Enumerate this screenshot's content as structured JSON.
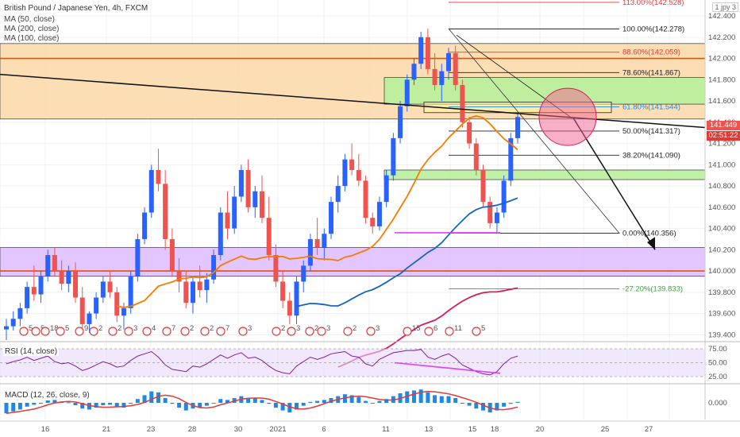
{
  "header": {
    "title": "British Pound / Japanese Yen, 4h, FXCM",
    "indicators": [
      "MA (50, close)",
      "MA (200, close)",
      "MA (100, close)"
    ],
    "corner_label": "1 jpy 3"
  },
  "current_price": {
    "value": "141.449",
    "countdown": "02:51:22",
    "price_color": "#ef5350",
    "countdown_color": "#e53935"
  },
  "colors": {
    "up": "#2962ff",
    "down": "#ef5350",
    "ma50": "#f57c00",
    "ma100": "#1565c0",
    "ma200": "#d81b60",
    "supply_zone": "#fbd8a8",
    "demand_zone": "#b9ef9c",
    "purple_zone": "#dcb8ff"
  },
  "chart_data": [
    {
      "type": "candlestick",
      "title": "British Pound / Japanese Yen, 4h, FXCM",
      "y_axis_ticks": [
        142.4,
        142.2,
        142.0,
        141.8,
        141.6,
        141.4,
        141.2,
        141.0,
        140.8,
        140.6,
        140.4,
        140.2,
        140.0,
        139.8,
        139.6,
        139.4
      ],
      "y_tick_labels": [
        "142.400",
        "142.200",
        "142.000",
        "141.800",
        "141.600",
        "141.400",
        "141.200",
        "141.000",
        "140.800",
        "140.600",
        "140.400",
        "140.200",
        "140.000",
        "139.800",
        "139.600",
        "139.400"
      ],
      "ylim": [
        139.35,
        142.55
      ],
      "x_tick_labels": [
        "16",
        "21",
        "23",
        "28",
        "30",
        "2021",
        "6",
        "11",
        "13",
        "15",
        "18",
        "20",
        "25",
        "27"
      ],
      "fib_levels": [
        {
          "label": "113.00%(142.528)",
          "price": 142.528,
          "color": "#e53935"
        },
        {
          "label": "100.00%(142.278)",
          "price": 142.278,
          "color": "#222222"
        },
        {
          "label": "88.60%(142.059)",
          "price": 142.059,
          "color": "#e53935"
        },
        {
          "label": "78.60%(141.867)",
          "price": 141.867,
          "color": "#222222"
        },
        {
          "label": "61.80%(141.544)",
          "price": 141.544,
          "color": "#1e88e5"
        },
        {
          "label": "50.00%(141.317)",
          "price": 141.317,
          "color": "#222222"
        },
        {
          "label": "38.20%(141.090)",
          "price": 141.09,
          "color": "#222222"
        },
        {
          "label": "0.00%(140.356)",
          "price": 140.356,
          "color": "#222222"
        },
        {
          "label": "-27.20%(139.833)",
          "price": 139.833,
          "color": "#43a047"
        }
      ],
      "zones": [
        {
          "name": "supply",
          "from": 141.43,
          "to": 142.14
        },
        {
          "name": "demand-upper",
          "from": 141.57,
          "to": 141.82
        },
        {
          "name": "demand-lower",
          "from": 140.86,
          "to": 140.95
        },
        {
          "name": "purple",
          "from": 139.95,
          "to": 140.22
        }
      ],
      "horizontal_lines": [
        142.0,
        140.0
      ],
      "event_labels": [
        "5",
        "5",
        "18",
        "5",
        "9",
        "2",
        "2",
        "3",
        "4",
        "7",
        "2",
        "2",
        "7",
        "3",
        "2",
        "3",
        "2",
        "3",
        "2",
        "3",
        "15",
        "6",
        "11",
        "5"
      ],
      "ohlc": [
        [
          139.45,
          139.55,
          139.35,
          139.48
        ],
        [
          139.48,
          139.62,
          139.44,
          139.55
        ],
        [
          139.55,
          139.7,
          139.48,
          139.65
        ],
        [
          139.65,
          139.9,
          139.6,
          139.85
        ],
        [
          139.85,
          140.05,
          139.72,
          139.78
        ],
        [
          139.78,
          140.0,
          139.7,
          139.95
        ],
        [
          139.95,
          140.2,
          139.9,
          140.15
        ],
        [
          140.15,
          140.22,
          139.95,
          140.0
        ],
        [
          140.0,
          140.1,
          139.82,
          139.88
        ],
        [
          139.88,
          140.05,
          139.8,
          140.0
        ],
        [
          140.0,
          140.08,
          139.7,
          139.75
        ],
        [
          139.75,
          139.85,
          139.45,
          139.5
        ],
        [
          139.5,
          139.62,
          139.42,
          139.6
        ],
        [
          139.6,
          139.8,
          139.55,
          139.75
        ],
        [
          139.75,
          139.95,
          139.7,
          139.9
        ],
        [
          139.9,
          140.0,
          139.75,
          139.8
        ],
        [
          139.8,
          139.85,
          139.52,
          139.58
        ],
        [
          139.58,
          139.7,
          139.45,
          139.65
        ],
        [
          139.65,
          140.0,
          139.6,
          139.95
        ],
        [
          139.95,
          140.35,
          139.9,
          140.3
        ],
        [
          140.3,
          140.6,
          140.25,
          140.55
        ],
        [
          140.55,
          141.0,
          140.5,
          140.95
        ],
        [
          140.95,
          141.15,
          140.75,
          140.82
        ],
        [
          140.82,
          140.95,
          140.2,
          140.3
        ],
        [
          140.3,
          140.4,
          139.95,
          140.0
        ],
        [
          140.0,
          140.12,
          139.8,
          139.9
        ],
        [
          139.9,
          140.0,
          139.65,
          139.7
        ],
        [
          139.7,
          139.95,
          139.6,
          139.9
        ],
        [
          139.9,
          140.05,
          139.75,
          139.82
        ],
        [
          139.82,
          139.98,
          139.7,
          139.92
        ],
        [
          139.92,
          140.2,
          139.88,
          140.15
        ],
        [
          140.15,
          140.6,
          140.1,
          140.55
        ],
        [
          140.55,
          140.75,
          140.3,
          140.4
        ],
        [
          140.4,
          140.8,
          140.35,
          140.7
        ],
        [
          140.7,
          141.0,
          140.65,
          140.95
        ],
        [
          140.95,
          141.05,
          140.55,
          140.6
        ],
        [
          140.6,
          140.8,
          140.5,
          140.75
        ],
        [
          140.75,
          140.9,
          140.45,
          140.5
        ],
        [
          140.5,
          140.7,
          140.1,
          140.15
        ],
        [
          140.15,
          140.25,
          139.85,
          139.9
        ],
        [
          139.9,
          140.0,
          139.65,
          139.72
        ],
        [
          139.72,
          139.8,
          139.5,
          139.58
        ],
        [
          139.58,
          139.95,
          139.5,
          139.9
        ],
        [
          139.9,
          140.1,
          139.8,
          140.05
        ],
        [
          140.05,
          140.35,
          140.0,
          140.3
        ],
        [
          140.3,
          140.5,
          140.15,
          140.22
        ],
        [
          140.22,
          140.4,
          140.1,
          140.35
        ],
        [
          140.35,
          140.7,
          140.3,
          140.65
        ],
        [
          140.65,
          140.9,
          140.55,
          140.8
        ],
        [
          140.8,
          141.1,
          140.75,
          141.05
        ],
        [
          141.05,
          141.2,
          140.9,
          140.95
        ],
        [
          140.95,
          141.1,
          140.8,
          140.85
        ],
        [
          140.85,
          140.9,
          140.45,
          140.5
        ],
        [
          140.5,
          140.55,
          140.35,
          140.42
        ],
        [
          140.42,
          140.7,
          140.38,
          140.65
        ],
        [
          140.65,
          140.95,
          140.6,
          140.9
        ],
        [
          140.9,
          141.3,
          140.85,
          141.25
        ],
        [
          141.25,
          141.6,
          141.2,
          141.55
        ],
        [
          141.55,
          141.85,
          141.5,
          141.8
        ],
        [
          141.8,
          142.0,
          141.75,
          141.95
        ],
        [
          141.95,
          142.25,
          141.9,
          142.2
        ],
        [
          142.2,
          142.28,
          141.85,
          141.9
        ],
        [
          141.9,
          142.05,
          141.7,
          141.75
        ],
        [
          141.75,
          141.95,
          141.6,
          141.88
        ],
        [
          141.88,
          142.1,
          141.8,
          142.05
        ],
        [
          142.05,
          142.12,
          141.7,
          141.75
        ],
        [
          141.75,
          141.8,
          141.35,
          141.4
        ],
        [
          141.4,
          141.45,
          141.15,
          141.2
        ],
        [
          141.2,
          141.25,
          140.9,
          140.95
        ],
        [
          140.95,
          141.0,
          140.6,
          140.65
        ],
        [
          140.65,
          140.7,
          140.4,
          140.45
        ],
        [
          140.45,
          140.6,
          140.36,
          140.55
        ],
        [
          140.55,
          140.9,
          140.5,
          140.85
        ],
        [
          140.85,
          141.3,
          140.8,
          141.25
        ],
        [
          141.25,
          141.49,
          141.2,
          141.449
        ]
      ]
    },
    {
      "type": "line",
      "title": "RSI (14, close)",
      "y_tick_labels": [
        "75.00",
        "50.00",
        "25.00"
      ],
      "y_ticks": [
        75,
        50,
        25
      ],
      "ylim": [
        15,
        85
      ],
      "values": [
        48,
        52,
        55,
        60,
        54,
        58,
        62,
        52,
        48,
        50,
        44,
        36,
        40,
        46,
        52,
        48,
        42,
        44,
        54,
        62,
        66,
        70,
        60,
        46,
        38,
        36,
        34,
        44,
        42,
        48,
        56,
        64,
        58,
        64,
        68,
        58,
        60,
        54,
        44,
        36,
        32,
        30,
        44,
        52,
        60,
        56,
        60,
        66,
        68,
        70,
        62,
        60,
        48,
        44,
        56,
        62,
        68,
        70,
        72,
        72,
        74,
        60,
        56,
        62,
        66,
        58,
        46,
        40,
        34,
        30,
        28,
        34,
        48,
        58,
        62
      ]
    },
    {
      "type": "histogram",
      "title": "MACD (12, 26, close, 9)",
      "y_tick_labels": [
        "0.000"
      ],
      "ylim": [
        -0.35,
        0.35
      ],
      "values": [
        -0.22,
        -0.18,
        -0.14,
        -0.08,
        -0.04,
        0.0,
        0.05,
        0.06,
        0.02,
        0.01,
        -0.05,
        -0.12,
        -0.14,
        -0.1,
        -0.05,
        -0.04,
        -0.09,
        -0.1,
        -0.02,
        0.08,
        0.16,
        0.24,
        0.22,
        0.1,
        -0.02,
        -0.1,
        -0.16,
        -0.12,
        -0.1,
        -0.06,
        0.0,
        0.08,
        0.06,
        0.1,
        0.14,
        0.1,
        0.1,
        0.06,
        -0.02,
        -0.1,
        -0.16,
        -0.2,
        -0.14,
        -0.06,
        0.02,
        0.04,
        0.06,
        0.1,
        0.14,
        0.18,
        0.16,
        0.12,
        0.04,
        0.0,
        0.04,
        0.08,
        0.14,
        0.2,
        0.24,
        0.26,
        0.28,
        0.22,
        0.16,
        0.14,
        0.14,
        0.1,
        0.0,
        -0.06,
        -0.12,
        -0.16,
        -0.2,
        -0.16,
        -0.08,
        -0.02,
        0.02
      ]
    }
  ]
}
